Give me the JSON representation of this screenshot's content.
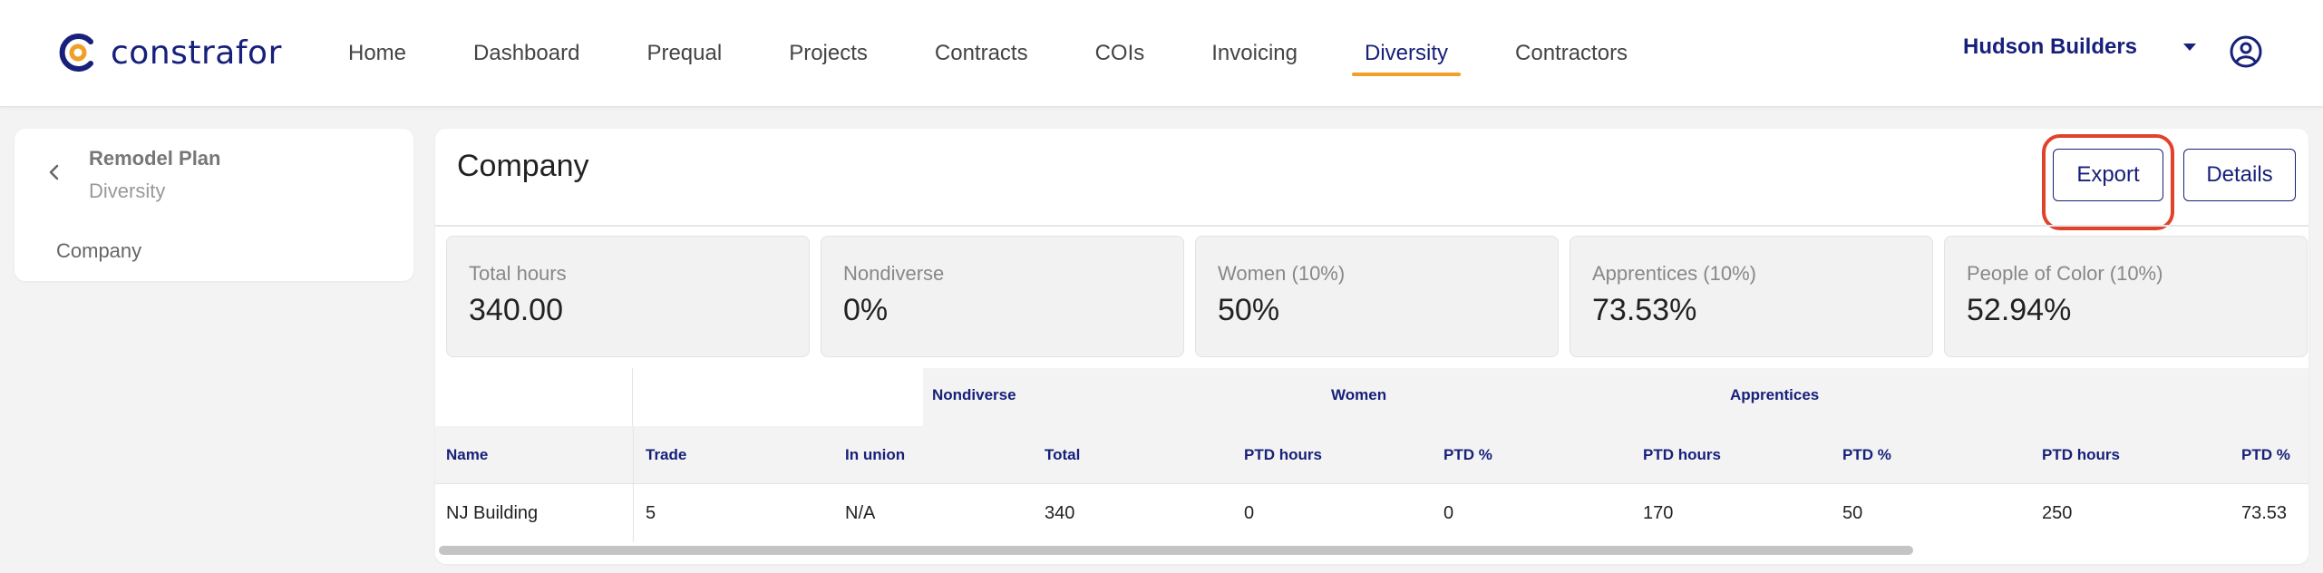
{
  "brand": {
    "name": "constrafor",
    "accent": "#f0a02a",
    "primary": "#17207a"
  },
  "nav": {
    "items": [
      {
        "label": "Home"
      },
      {
        "label": "Dashboard"
      },
      {
        "label": "Prequal"
      },
      {
        "label": "Projects"
      },
      {
        "label": "Contracts"
      },
      {
        "label": "COIs"
      },
      {
        "label": "Invoicing"
      },
      {
        "label": "Diversity",
        "active": true
      },
      {
        "label": "Contractors"
      }
    ],
    "org": "Hudson Builders",
    "user_icon": "user-circle-icon"
  },
  "sidebar": {
    "title": "Remodel Plan",
    "subtitle": "Diversity",
    "link": "Company"
  },
  "main": {
    "title": "Company",
    "export_label": "Export",
    "details_label": "Details",
    "stats": [
      {
        "label": "Total hours",
        "value": "340.00"
      },
      {
        "label": "Nondiverse",
        "value": "0%"
      },
      {
        "label": "Women (10%)",
        "value": "50%"
      },
      {
        "label": "Apprentices (10%)",
        "value": "73.53%"
      },
      {
        "label": "People of Color (10%)",
        "value": "52.94%"
      }
    ]
  },
  "table": {
    "groups": [
      "Nondiverse",
      "Women",
      "Apprentices"
    ],
    "headers": [
      "Name",
      "Trade",
      "In union",
      "Total",
      "PTD hours",
      "PTD %",
      "PTD hours",
      "PTD %",
      "PTD hours",
      "PTD %"
    ],
    "rows": [
      [
        "NJ Building",
        "5",
        "N/A",
        "340",
        "0",
        "0",
        "170",
        "50",
        "250",
        "73.53"
      ]
    ]
  }
}
